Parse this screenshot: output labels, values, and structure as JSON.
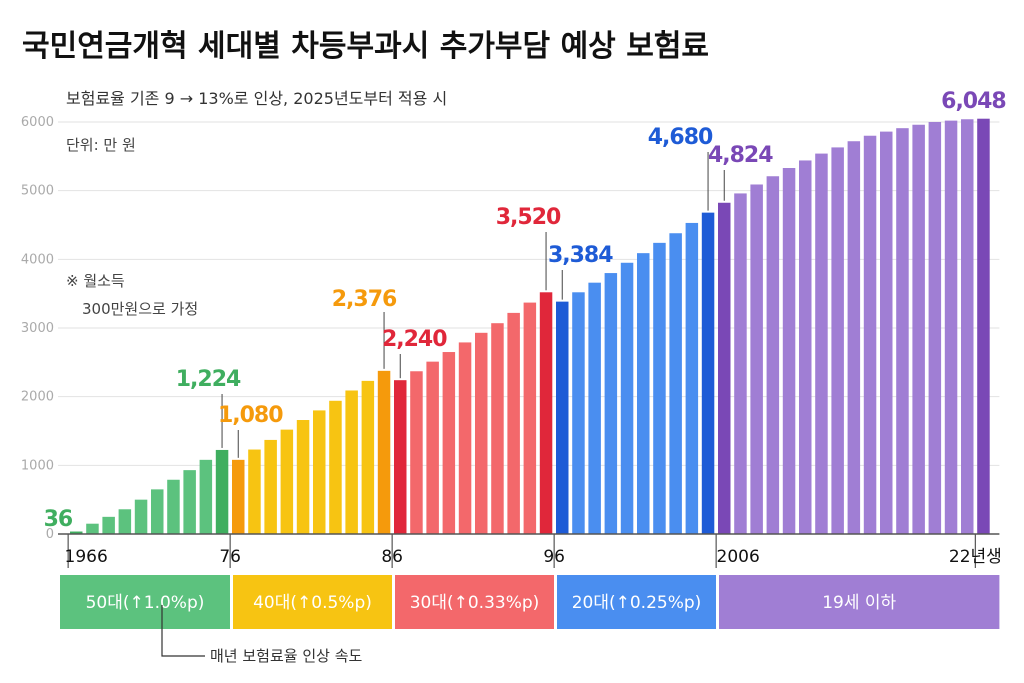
{
  "chart_data": {
    "type": "bar",
    "title": "국민연금개혁 세대별 차등부과시 추가부담 예상 보험료",
    "subtitle": "보험료율 기존 9 → 13%로 인상, 2025년도부터 적용 시",
    "unit_label": "단위: 만 원",
    "note_lines": [
      "※ 월소득",
      "300만원으로 가정"
    ],
    "ylim": [
      0,
      6000
    ],
    "y_ticks": [
      0,
      1000,
      2000,
      3000,
      4000,
      5000,
      6000
    ],
    "y_tick_labels": [
      "0",
      "1000",
      "2000",
      "3000",
      "4000",
      "5000",
      "6000"
    ],
    "x_range": [
      1966,
      2022
    ],
    "x_tick_labels": [
      {
        "year": 1966,
        "label": "1966"
      },
      {
        "year": 1976,
        "label": "76"
      },
      {
        "year": 1986,
        "label": "86"
      },
      {
        "year": 1996,
        "label": "96"
      },
      {
        "year": 2006,
        "label": "2006"
      },
      {
        "year": 2022,
        "label": "22년생"
      }
    ],
    "values": [
      36,
      150,
      250,
      360,
      500,
      650,
      790,
      930,
      1080,
      1224,
      1080,
      1230,
      1370,
      1520,
      1660,
      1800,
      1940,
      2090,
      2230,
      2376,
      2240,
      2370,
      2510,
      2650,
      2790,
      2930,
      3070,
      3220,
      3370,
      3520,
      3384,
      3520,
      3660,
      3800,
      3950,
      4090,
      4240,
      4380,
      4530,
      4680,
      4824,
      4960,
      5090,
      5210,
      5330,
      5440,
      5540,
      5630,
      5720,
      5800,
      5860,
      5910,
      5960,
      6000,
      6020,
      6040,
      6048
    ],
    "data_labels": [
      {
        "index": 0,
        "text": "36"
      },
      {
        "index": 9,
        "text": "1,224"
      },
      {
        "index": 10,
        "text": "1,080"
      },
      {
        "index": 19,
        "text": "2,376"
      },
      {
        "index": 20,
        "text": "2,240"
      },
      {
        "index": 29,
        "text": "3,520"
      },
      {
        "index": 30,
        "text": "3,384"
      },
      {
        "index": 39,
        "text": "4,680"
      },
      {
        "index": 40,
        "text": "4,824"
      },
      {
        "index": 56,
        "text": "6,048"
      }
    ],
    "groups": [
      {
        "name": "50대",
        "label": "50대(↑1.0%p)",
        "start": 0,
        "end": 9,
        "color": "#5cc27e",
        "edge_color": "#3fae5f"
      },
      {
        "name": "40대",
        "label": "40대(↑0.5%p)",
        "start": 10,
        "end": 19,
        "color": "#f7c412",
        "edge_color": "#f59a0c"
      },
      {
        "name": "30대",
        "label": "30대(↑0.33%p)",
        "start": 20,
        "end": 29,
        "color": "#f3686b",
        "edge_color": "#e0273a"
      },
      {
        "name": "20대",
        "label": "20대(↑0.25%p)",
        "start": 30,
        "end": 39,
        "color": "#4a8ef0",
        "edge_color": "#1e5bd6"
      },
      {
        "name": "19세이하",
        "label": "19세 이하",
        "start": 40,
        "end": 56,
        "color": "#a07ed4",
        "edge_color": "#7a48b6"
      }
    ],
    "legend_note": "매년 보험료율 인상 속도"
  }
}
